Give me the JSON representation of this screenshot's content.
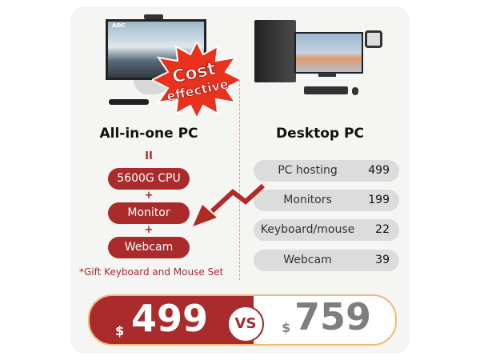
{
  "badge": {
    "line1": "Cost",
    "line2": "effective"
  },
  "brand_logo": "AOC",
  "left": {
    "title": "All-in-one PC",
    "equals": "II",
    "components": [
      "5600G CPU",
      "Monitor",
      "Webcam"
    ],
    "plus": "+",
    "gift_note": "*Gift Keyboard and Mouse Set"
  },
  "right": {
    "title": "Desktop PC",
    "items": [
      {
        "label": "PC hosting",
        "price": "499"
      },
      {
        "label": "Monitors",
        "price": "199"
      },
      {
        "label": "Keyboard/mouse",
        "price": "22"
      },
      {
        "label": "Webcam",
        "price": "39"
      }
    ]
  },
  "comparison": {
    "currency": "$",
    "left_price": "499",
    "vs": "VS",
    "right_price": "759"
  },
  "colors": {
    "accent": "#a92b2b",
    "badge": "#e8321e",
    "border": "#f3b876",
    "gray_pill": "#dcdcdc"
  }
}
